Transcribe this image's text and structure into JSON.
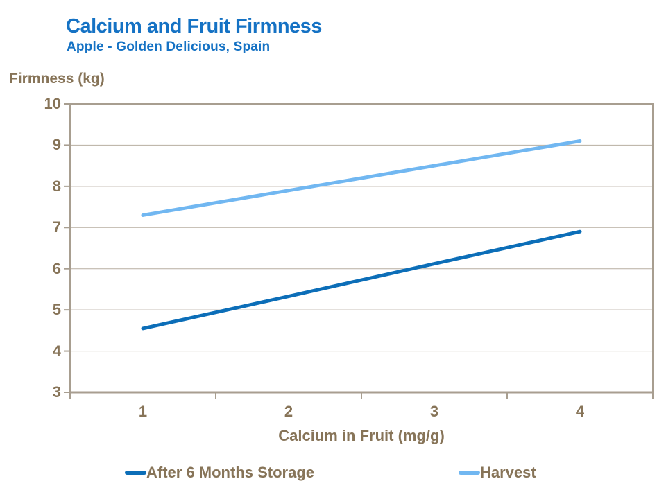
{
  "header": {
    "title": "Calcium and Fruit Firmness",
    "subtitle": "Apple - Golden Delicious, Spain",
    "title_color": "#1572C4"
  },
  "chart_data": {
    "type": "line",
    "title": "Calcium and Fruit Firmness",
    "subtitle": "Apple - Golden Delicious, Spain",
    "xlabel": "Calcium in Fruit (mg/g)",
    "ylabel": "Firmness (kg)",
    "x": [
      1,
      2,
      3,
      4
    ],
    "x_tick_labels": [
      "1",
      "2",
      "3",
      "4"
    ],
    "ylim": [
      3,
      10
    ],
    "y_ticks": [
      3,
      4,
      5,
      6,
      7,
      8,
      9,
      10
    ],
    "grid": true,
    "legend_position": "bottom",
    "series": [
      {
        "name": "After 6 Months Storage",
        "color": "#0C6EB8",
        "values": [
          4.55,
          5.33,
          6.12,
          6.9
        ]
      },
      {
        "name": "Harvest",
        "color": "#71B7F1",
        "values": [
          7.3,
          7.9,
          8.5,
          9.1
        ]
      }
    ],
    "colors": {
      "axis": "#A89E90",
      "grid": "#B7AEA1",
      "text": "#877458",
      "background": "#FFFFFF"
    }
  }
}
